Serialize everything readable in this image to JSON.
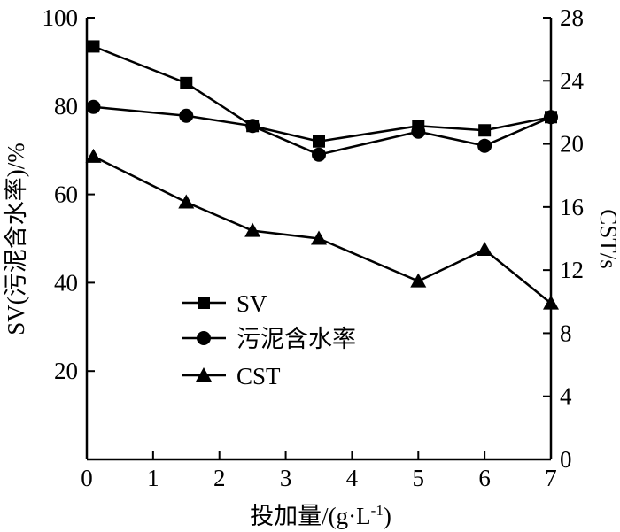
{
  "chart_data": {
    "type": "line",
    "xlabel": "投加量/(g·L",
    "xlabel_sup": "-1",
    "xlabel_tail": ")",
    "ylabel_left": "SV(污泥含水率)/%",
    "ylabel_right": "CST/s",
    "xlim": [
      0,
      7
    ],
    "ylim_left": [
      0,
      100
    ],
    "ylim_right": [
      0,
      28
    ],
    "xticks": [
      "0",
      "1",
      "2",
      "3",
      "4",
      "5",
      "6",
      "7"
    ],
    "yticks_left": [
      "20",
      "40",
      "60",
      "80",
      "100"
    ],
    "yticks_right": [
      "0",
      "4",
      "8",
      "12",
      "16",
      "20",
      "24",
      "28"
    ],
    "legend_position": "center-left",
    "series": [
      {
        "name": "SV",
        "marker": "square",
        "axis": "left",
        "points": [
          [
            0.1,
            93.5
          ],
          [
            1.5,
            85.2
          ],
          [
            2.5,
            75.5
          ],
          [
            3.5,
            72.0
          ],
          [
            5.0,
            75.5
          ],
          [
            6.0,
            74.5
          ],
          [
            7.0,
            77.5
          ]
        ]
      },
      {
        "name": "污泥含水率",
        "marker": "circle",
        "axis": "left",
        "points": [
          [
            0.1,
            79.8
          ],
          [
            1.5,
            77.8
          ],
          [
            2.5,
            75.5
          ],
          [
            3.5,
            69.0
          ],
          [
            5.0,
            74.2
          ],
          [
            6.0,
            71.0
          ],
          [
            7.0,
            77.5
          ]
        ]
      },
      {
        "name": "CST",
        "marker": "triangle",
        "axis": "right",
        "points": [
          [
            0.1,
            19.2
          ],
          [
            1.5,
            16.3
          ],
          [
            2.5,
            14.5
          ],
          [
            3.5,
            14.0
          ],
          [
            5.0,
            11.3
          ],
          [
            6.0,
            13.3
          ],
          [
            7.0,
            9.9
          ]
        ]
      }
    ],
    "colors": {
      "line": "#000000",
      "marker": "#000000",
      "background": "#ffffff"
    }
  }
}
